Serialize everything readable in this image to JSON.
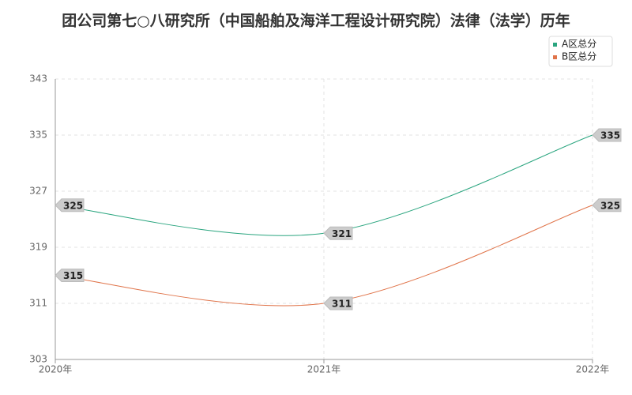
{
  "chart_data": {
    "type": "line",
    "title": "团公司第七○八研究所（中国船舶及海洋工程设计研究院）法律（法学）历年",
    "categories": [
      "2020年",
      "2021年",
      "2022年"
    ],
    "series": [
      {
        "name": "A区总分",
        "color": "#2aa57f",
        "values": [
          325,
          321,
          335
        ]
      },
      {
        "name": "B区总分",
        "color": "#e0744a",
        "values": [
          315,
          311,
          325
        ]
      }
    ],
    "ylim": [
      303,
      343
    ],
    "yticks": [
      303,
      311,
      319,
      327,
      335,
      343
    ],
    "grid": true,
    "smooth": true,
    "legend": "top-right"
  }
}
